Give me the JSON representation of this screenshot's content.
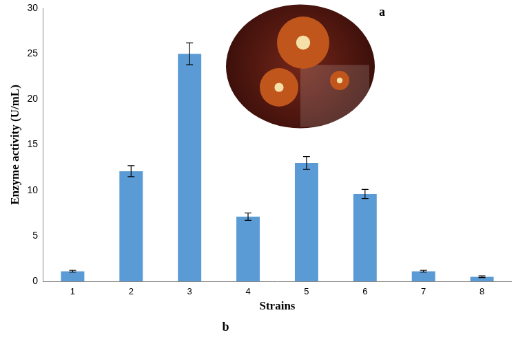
{
  "chart_data": {
    "type": "bar",
    "x_label": "Strains",
    "y_label": "Enzyme activity (U/mL)",
    "annotations": [
      "a",
      "b"
    ],
    "categories": [
      "1",
      "2",
      "3",
      "4",
      "5",
      "6",
      "7",
      "8"
    ],
    "values": [
      1.1,
      12.1,
      25.0,
      7.1,
      13.0,
      9.6,
      1.1,
      0.5
    ],
    "errors": [
      0.1,
      0.6,
      1.2,
      0.4,
      0.7,
      0.5,
      0.1,
      0.1
    ],
    "color": "#5b9bd5",
    "ylim": [
      0,
      30
    ],
    "yticks": [
      0,
      5,
      10,
      15,
      20,
      25,
      30
    ],
    "grid": false
  }
}
